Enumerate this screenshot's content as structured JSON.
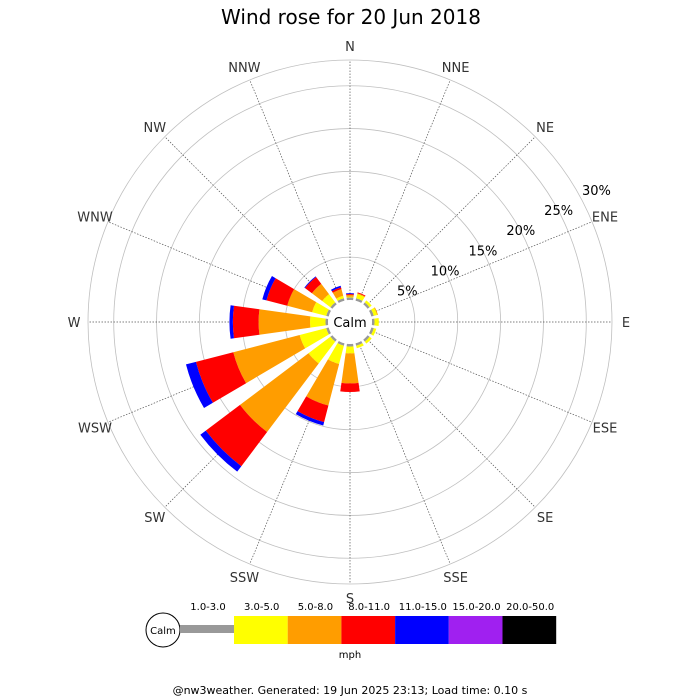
{
  "title": "Wind rose for 20 Jun 2018",
  "footer": "@nw3weather. Generated: 19 Jun 2025 23:13; Load time: 0.10 s",
  "chart_data": {
    "type": "wind-rose",
    "title": "Wind rose for 20 Jun 2018",
    "directions": [
      "N",
      "NNE",
      "NE",
      "ENE",
      "E",
      "ESE",
      "SE",
      "SSE",
      "S",
      "SSW",
      "SW",
      "WSW",
      "W",
      "WNW",
      "NW",
      "NNW"
    ],
    "ring_labels": [
      "5%",
      "10%",
      "15%",
      "20%",
      "25%",
      "30%"
    ],
    "rings_percent": [
      5,
      10,
      15,
      20,
      25,
      30
    ],
    "rmax_percent": 28,
    "calm_label": "Calm",
    "unit": "mph",
    "bins": [
      "1.0-3.0",
      "3.0-5.0",
      "5.0-8.0",
      "8.0-11.0",
      "11.0-15.0",
      "15.0-20.0",
      "20.0-50.0"
    ],
    "colors": [
      "#999999",
      "#ffff00",
      "#ff9d00",
      "#ff0000",
      "#0000ff",
      "#a020f0",
      "#000000"
    ],
    "series": [
      {
        "direction": "N",
        "values": [
          0.3,
          0.1,
          0.2,
          0.1,
          0.1,
          0,
          0
        ]
      },
      {
        "direction": "NNE",
        "values": [
          0.3,
          0.5,
          0.1,
          0.1,
          0,
          0,
          0
        ]
      },
      {
        "direction": "NE",
        "values": [
          0.3,
          0.3,
          0,
          0,
          0,
          0,
          0
        ]
      },
      {
        "direction": "ENE",
        "values": [
          0.3,
          0.4,
          0.1,
          0,
          0,
          0,
          0
        ]
      },
      {
        "direction": "E",
        "values": [
          0.3,
          0.5,
          0,
          0,
          0,
          0,
          0
        ]
      },
      {
        "direction": "ESE",
        "values": [
          0.3,
          0.3,
          0,
          0,
          0,
          0,
          0
        ]
      },
      {
        "direction": "SE",
        "values": [
          0.3,
          0.3,
          0,
          0,
          0,
          0,
          0
        ]
      },
      {
        "direction": "SSE",
        "values": [
          0.3,
          0.3,
          0,
          0,
          0,
          0,
          0
        ]
      },
      {
        "direction": "S",
        "values": [
          0.3,
          0.8,
          3.5,
          1.0,
          0,
          0,
          0
        ]
      },
      {
        "direction": "SSW",
        "values": [
          0.3,
          2.2,
          5.0,
          2.0,
          0.4,
          0,
          0
        ]
      },
      {
        "direction": "SW",
        "values": [
          0.3,
          3.2,
          10.0,
          5.0,
          0.8,
          0,
          0
        ]
      },
      {
        "direction": "WSW",
        "values": [
          0.3,
          3.2,
          8.0,
          4.5,
          1.2,
          0,
          0
        ]
      },
      {
        "direction": "W",
        "values": [
          0.3,
          1.8,
          6.0,
          3.0,
          0.4,
          0,
          0
        ]
      },
      {
        "direction": "WNW",
        "values": [
          0.3,
          1.7,
          3.0,
          2.5,
          0.5,
          0,
          0
        ]
      },
      {
        "direction": "NW",
        "values": [
          0.3,
          1.2,
          1.5,
          1.0,
          0.1,
          0,
          0
        ]
      },
      {
        "direction": "NNW",
        "values": [
          0.3,
          0.3,
          0.8,
          0.2,
          0.2,
          0,
          0
        ]
      }
    ]
  }
}
